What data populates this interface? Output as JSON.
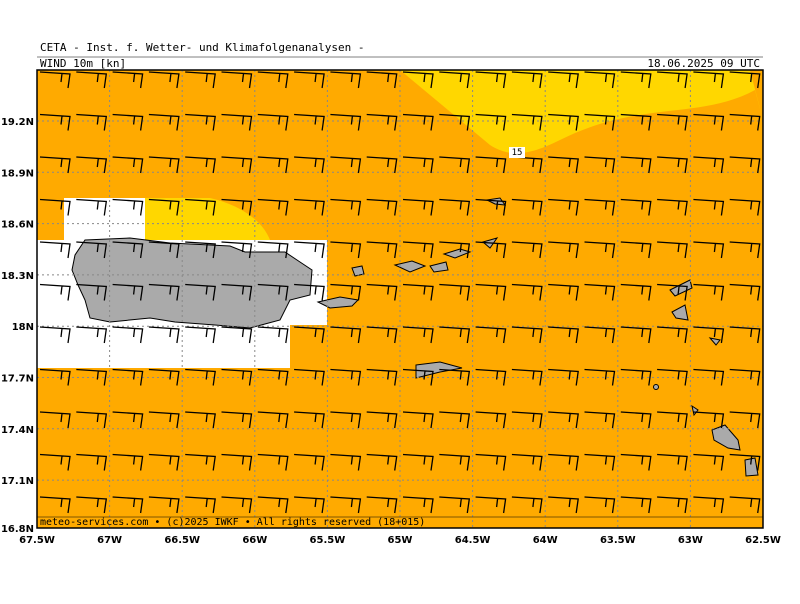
{
  "header": {
    "title": "CETA - Inst. f. Wetter- und Klimafolgenanalysen -",
    "field": "WIND 10m [kn]",
    "valid_time": "18.06.2025 09 UTC"
  },
  "map": {
    "lat_labels": [
      "19.2N",
      "18.9N",
      "18.6N",
      "18.3N",
      "18N",
      "17.7N",
      "17.4N",
      "17.1N",
      "16.8N"
    ],
    "lon_labels": [
      "67.5W",
      "67W",
      "66.5W",
      "66W",
      "65.5W",
      "65W",
      "64.5W",
      "64W",
      "63.5W",
      "63W",
      "62.5W"
    ],
    "contour_label": "15"
  },
  "footer": {
    "credit": "meteo-services.com • (c)2025 IWKF • All rights reserved (18+015)"
  }
}
